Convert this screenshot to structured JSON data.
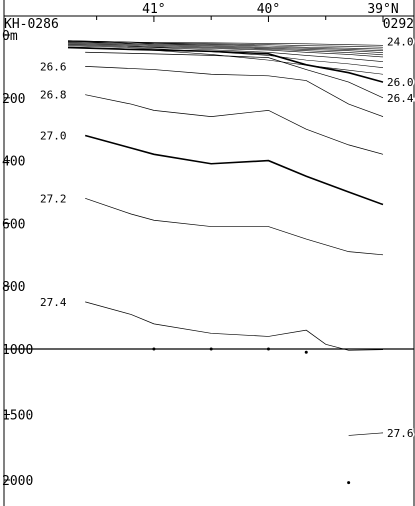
{
  "chart_data": {
    "type": "line",
    "title": "",
    "stations": {
      "left": "KH-0286",
      "right": "0292"
    },
    "x_ticks": [
      {
        "label": "41°",
        "lat": 41.0
      },
      {
        "label": "40°",
        "lat": 40.0
      },
      {
        "label": "39°N",
        "lat": 39.0
      }
    ],
    "xlim": [
      41.75,
      39.0
    ],
    "x_scale": "linear, latitude decreasing to the right",
    "y_ticks_upper": [
      "0m",
      "200",
      "400",
      "600",
      "800",
      "1000"
    ],
    "y_ticks_lower": [
      "1500",
      "2000"
    ],
    "ylim_upper": [
      0,
      1000
    ],
    "ylim_lower": [
      1000,
      2150
    ],
    "y_scale": "depth increasing downward, axis break at 1000 m with different scale below",
    "ylabel_unit": "m",
    "grid": false,
    "legend": "none",
    "stations_dots": [
      {
        "lat": 41.0,
        "depth": 1000
      },
      {
        "lat": 40.5,
        "depth": 1000
      },
      {
        "lat": 40.0,
        "depth": 1000
      },
      {
        "lat": 39.67,
        "depth": 1025
      },
      {
        "lat": 39.3,
        "depth": 2020
      }
    ],
    "shallow_contours": [
      {
        "y": [
          20,
          22,
          24,
          25,
          27,
          28,
          31,
          33
        ]
      },
      {
        "y": [
          18,
          22,
          25,
          28,
          31,
          34,
          36,
          39
        ]
      },
      {
        "y": [
          18,
          22,
          27,
          31,
          35,
          39,
          42,
          45
        ]
      },
      {
        "y": [
          20,
          25,
          29,
          34,
          39,
          42,
          46,
          50
        ]
      },
      {
        "y": [
          22,
          27,
          32,
          37,
          42,
          46,
          50,
          56
        ]
      },
      {
        "y": [
          25,
          30,
          35,
          40,
          45,
          50,
          56,
          63
        ]
      },
      {
        "y": [
          28,
          33,
          38,
          43,
          48,
          55,
          62,
          70
        ]
      },
      {
        "y": [
          31,
          36,
          40,
          47,
          55,
          65,
          75,
          85
        ]
      },
      {
        "y": [
          34,
          39,
          44,
          53,
          65,
          80,
          92,
          104
        ]
      },
      {
        "y": [
          38,
          43,
          49,
          62,
          80,
          96,
          112,
          125
        ]
      }
    ],
    "shallow_x": [
      41.75,
      41.3,
      41.0,
      40.5,
      40.0,
      39.67,
      39.3,
      39.0
    ],
    "contours": [
      {
        "label": "24.0",
        "label_lat": 39.0,
        "label_depth": 20,
        "x": [],
        "y": []
      },
      {
        "label": "26.0",
        "label_lat": 39.0,
        "label_depth": 150,
        "x": [
          41.75,
          41.3,
          40.5,
          40.0,
          39.67,
          39.3,
          39.0
        ],
        "y": [
          40,
          45,
          52,
          60,
          95,
          120,
          150
        ],
        "bold": true
      },
      {
        "label": "26.4",
        "label_lat": 39.0,
        "label_depth": 200,
        "x": [
          41.6,
          41.0,
          40.5,
          40.0,
          39.67,
          39.3,
          39.0
        ],
        "y": [
          55,
          60,
          65,
          72,
          110,
          150,
          200
        ],
        "bold": false
      },
      {
        "label": "26.6",
        "label_lat": 41.5,
        "label_depth": 100,
        "x": [
          41.6,
          41.0,
          40.5,
          40.0,
          39.67,
          39.3,
          39.0
        ],
        "y": [
          100,
          110,
          125,
          130,
          145,
          220,
          260
        ],
        "bold": false
      },
      {
        "label": "26.8",
        "label_lat": 41.5,
        "label_depth": 190,
        "x": [
          41.6,
          41.2,
          41.0,
          40.5,
          40.0,
          39.67,
          39.3,
          39.0
        ],
        "y": [
          190,
          220,
          240,
          260,
          240,
          300,
          350,
          380
        ],
        "bold": false
      },
      {
        "label": "27.0",
        "label_lat": 41.5,
        "label_depth": 320,
        "x": [
          41.6,
          41.2,
          41.0,
          40.5,
          40.0,
          39.67,
          39.3,
          39.0
        ],
        "y": [
          320,
          360,
          380,
          410,
          400,
          450,
          500,
          540
        ],
        "bold": true
      },
      {
        "label": "27.2",
        "label_lat": 41.5,
        "label_depth": 520,
        "x": [
          41.6,
          41.2,
          41.0,
          40.5,
          40.0,
          39.67,
          39.3,
          39.0
        ],
        "y": [
          520,
          570,
          590,
          610,
          610,
          650,
          690,
          700
        ],
        "bold": false
      },
      {
        "label": "27.4",
        "label_lat": 41.5,
        "label_depth": 850,
        "x": [
          41.6,
          41.2,
          41.0,
          40.5,
          40.0,
          39.67,
          39.5,
          39.3,
          39.0
        ],
        "y": [
          850,
          890,
          920,
          950,
          960,
          940,
          985,
          1010,
          1005
        ],
        "bold": false
      },
      {
        "label": "27.6",
        "label_lat": 39.0,
        "label_depth": 1640,
        "x": [
          39.3,
          39.0
        ],
        "y": [
          1660,
          1640
        ],
        "bold": false
      }
    ]
  }
}
